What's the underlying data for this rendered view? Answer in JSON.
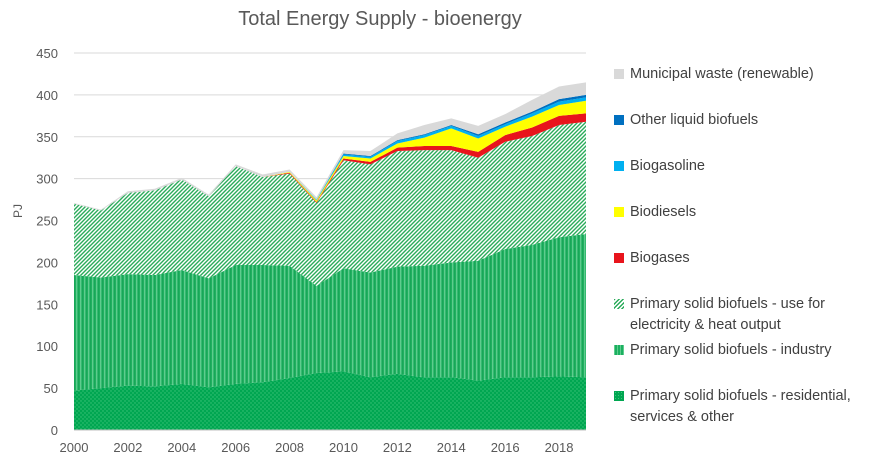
{
  "chart_data": {
    "type": "area",
    "stacked": true,
    "title": "Total Energy Supply - bioenergy",
    "ylabel": "PJ",
    "xlabel": "",
    "ylim": [
      0,
      450
    ],
    "yticks": [
      0,
      50,
      100,
      150,
      200,
      250,
      300,
      350,
      400,
      450
    ],
    "xlim": [
      2000,
      2019
    ],
    "xticks": [
      2000,
      2002,
      2004,
      2006,
      2008,
      2010,
      2012,
      2014,
      2016,
      2018
    ],
    "grid": true,
    "legend_position": "right",
    "x": [
      2000,
      2001,
      2002,
      2003,
      2004,
      2005,
      2006,
      2007,
      2008,
      2009,
      2010,
      2011,
      2012,
      2013,
      2014,
      2015,
      2016,
      2017,
      2018,
      2019
    ],
    "series": [
      {
        "name": "Primary solid biofuels - residential, services & other",
        "color": "#00a651",
        "pattern": "dots",
        "values": [
          47,
          50,
          53,
          52,
          55,
          51,
          55,
          57,
          62,
          68,
          70,
          63,
          67,
          63,
          63,
          59,
          63,
          63,
          64,
          63
        ]
      },
      {
        "name": "Primary solid biofuels - industry",
        "color": "#1cb060",
        "pattern": "vertical",
        "values": [
          138,
          132,
          133,
          133,
          136,
          130,
          142,
          140,
          134,
          104,
          123,
          125,
          128,
          133,
          137,
          143,
          153,
          158,
          166,
          171
        ]
      },
      {
        "name": "Primary solid biofuels - use for electricity & heat output",
        "color": "#2aab5a",
        "pattern": "diagonal",
        "values": [
          85,
          80,
          97,
          101,
          108,
          98,
          118,
          105,
          110,
          99,
          129,
          129,
          138,
          138,
          134,
          123,
          128,
          130,
          134,
          134
        ]
      },
      {
        "name": "Biogases",
        "color": "#e8141c",
        "pattern": "solid",
        "values": [
          0,
          0,
          0,
          0,
          0,
          0,
          0,
          0,
          1,
          1,
          2,
          3,
          4,
          5,
          5,
          7,
          8,
          10,
          11,
          10
        ]
      },
      {
        "name": "Biodiesels",
        "color": "#ffff00",
        "pattern": "solid",
        "values": [
          0,
          0,
          0,
          0,
          0,
          0,
          0,
          0,
          1,
          2,
          3,
          4,
          5,
          10,
          21,
          16,
          10,
          13,
          13,
          15
        ]
      },
      {
        "name": "Biogasoline",
        "color": "#00b0f0",
        "pattern": "solid",
        "values": [
          0,
          0,
          0,
          0,
          0,
          0,
          0,
          0,
          0,
          1,
          2,
          2,
          3,
          3,
          3,
          3,
          3,
          4,
          4,
          4
        ]
      },
      {
        "name": "Other liquid biofuels",
        "color": "#0070c0",
        "pattern": "solid",
        "values": [
          0,
          0,
          0,
          0,
          0,
          0,
          0,
          0,
          0,
          0,
          1,
          1,
          1,
          1,
          1,
          2,
          2,
          2,
          3,
          3
        ]
      },
      {
        "name": "Municipal waste (renewable)",
        "color": "#d9d9d9",
        "pattern": "solid",
        "values": [
          1,
          1,
          2,
          2,
          2,
          2,
          2,
          3,
          3,
          3,
          4,
          6,
          8,
          11,
          8,
          10,
          10,
          14,
          15,
          15
        ]
      }
    ],
    "legend": [
      {
        "label": "Municipal waste (renewable)",
        "color": "#d9d9d9",
        "pattern": "solid"
      },
      {
        "label": "Other liquid biofuels",
        "color": "#0070c0",
        "pattern": "solid"
      },
      {
        "label": "Biogasoline",
        "color": "#00b0f0",
        "pattern": "solid"
      },
      {
        "label": "Biodiesels",
        "color": "#ffff00",
        "pattern": "solid"
      },
      {
        "label": "Biogases",
        "color": "#e8141c",
        "pattern": "solid"
      },
      {
        "label": "Primary solid biofuels - use for electricity & heat output",
        "color": "#2aab5a",
        "pattern": "diagonal"
      },
      {
        "label": "Primary solid biofuels - industry",
        "color": "#1cb060",
        "pattern": "vertical"
      },
      {
        "label": "Primary solid biofuels - residential, services & other",
        "color": "#00a651",
        "pattern": "dots"
      }
    ]
  }
}
